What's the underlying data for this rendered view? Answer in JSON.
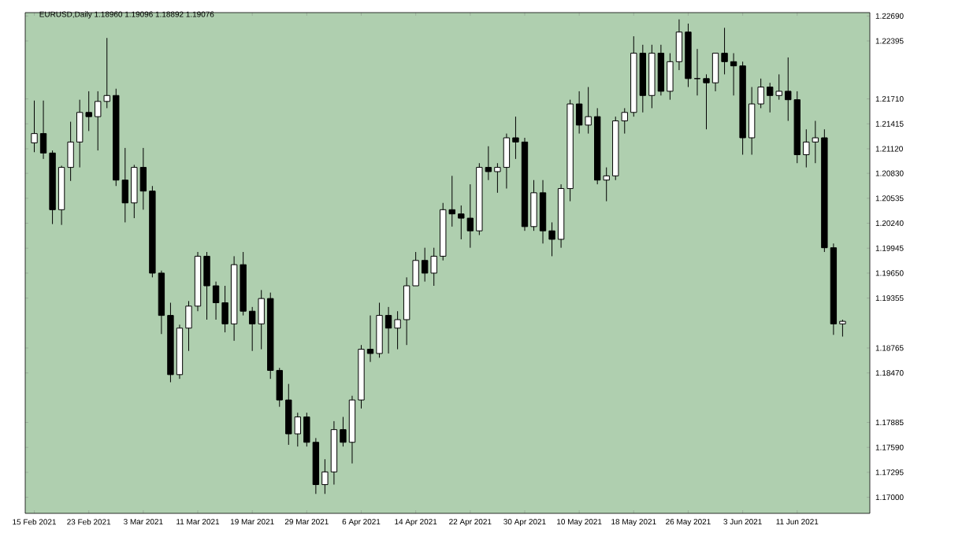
{
  "chart_data": {
    "type": "candlestick",
    "title": "EURUSD,Daily  1.18960 1.19096 1.18892 1.19076",
    "categories": [
      "15 Feb 2021",
      null,
      null,
      null,
      null,
      null,
      "23 Feb 2021",
      null,
      null,
      null,
      null,
      null,
      "3 Mar 2021",
      null,
      null,
      null,
      null,
      null,
      "11 Mar 2021",
      null,
      null,
      null,
      null,
      null,
      "19 Mar 2021",
      null,
      null,
      null,
      null,
      null,
      "29 Mar 2021",
      null,
      null,
      null,
      null,
      null,
      "6 Apr 2021",
      null,
      null,
      null,
      null,
      null,
      "14 Apr 2021",
      null,
      null,
      null,
      null,
      null,
      "22 Apr 2021",
      null,
      null,
      null,
      null,
      null,
      "30 Apr 2021",
      null,
      null,
      null,
      null,
      null,
      "10 May 2021",
      null,
      null,
      null,
      null,
      null,
      "18 May 2021",
      null,
      null,
      null,
      null,
      null,
      "26 May 2021",
      null,
      null,
      null,
      null,
      null,
      "3 Jun 2021",
      null,
      null,
      null,
      null,
      null,
      "11 Jun 2021",
      null,
      null,
      null,
      null,
      null
    ],
    "ohlc": [
      [
        1.2119,
        1.2169,
        1.2108,
        1.213
      ],
      [
        1.213,
        1.2169,
        1.21,
        1.2107
      ],
      [
        1.2107,
        1.211,
        1.2023,
        1.204
      ],
      [
        1.204,
        1.2092,
        1.2022,
        1.209
      ],
      [
        1.209,
        1.2144,
        1.2074,
        1.212
      ],
      [
        1.212,
        1.217,
        1.209,
        1.2155
      ],
      [
        1.2155,
        1.218,
        1.2133,
        1.215
      ],
      [
        1.215,
        1.218,
        1.211,
        1.2168
      ],
      [
        1.2168,
        1.2243,
        1.216,
        1.2175
      ],
      [
        1.2175,
        1.2183,
        1.2068,
        1.2075
      ],
      [
        1.2075,
        1.2113,
        1.2025,
        1.2048
      ],
      [
        1.2048,
        1.2093,
        1.203,
        1.209
      ],
      [
        1.209,
        1.2113,
        1.204,
        1.2062
      ],
      [
        1.2062,
        1.2068,
        1.196,
        1.1965
      ],
      [
        1.1965,
        1.1968,
        1.1893,
        1.1915
      ],
      [
        1.1915,
        1.193,
        1.1836,
        1.1845
      ],
      [
        1.1845,
        1.1904,
        1.184,
        1.19
      ],
      [
        1.19,
        1.1932,
        1.1873,
        1.1926
      ],
      [
        1.1926,
        1.199,
        1.192,
        1.1985
      ],
      [
        1.1985,
        1.199,
        1.191,
        1.195
      ],
      [
        1.195,
        1.1955,
        1.191,
        1.193
      ],
      [
        1.193,
        1.195,
        1.1895,
        1.1905
      ],
      [
        1.1905,
        1.1985,
        1.1885,
        1.1975
      ],
      [
        1.1975,
        1.199,
        1.1915,
        1.192
      ],
      [
        1.192,
        1.1925,
        1.1873,
        1.1905
      ],
      [
        1.1905,
        1.1945,
        1.1875,
        1.1935
      ],
      [
        1.1935,
        1.1942,
        1.184,
        1.185
      ],
      [
        1.185,
        1.1853,
        1.1807,
        1.1815
      ],
      [
        1.1815,
        1.1834,
        1.1762,
        1.1775
      ],
      [
        1.1775,
        1.18,
        1.176,
        1.1795
      ],
      [
        1.1795,
        1.18,
        1.176,
        1.1765
      ],
      [
        1.1765,
        1.177,
        1.1704,
        1.1715
      ],
      [
        1.1715,
        1.1745,
        1.1704,
        1.173
      ],
      [
        1.173,
        1.179,
        1.1715,
        1.178
      ],
      [
        1.178,
        1.1795,
        1.176,
        1.1765
      ],
      [
        1.1765,
        1.182,
        1.174,
        1.1815
      ],
      [
        1.1815,
        1.188,
        1.1805,
        1.1875
      ],
      [
        1.1875,
        1.1915,
        1.186,
        1.187
      ],
      [
        1.187,
        1.193,
        1.1865,
        1.1915
      ],
      [
        1.1915,
        1.1925,
        1.187,
        1.19
      ],
      [
        1.19,
        1.192,
        1.1875,
        1.191
      ],
      [
        1.191,
        1.196,
        1.188,
        1.195
      ],
      [
        1.195,
        1.199,
        1.195,
        1.198
      ],
      [
        1.198,
        1.1995,
        1.1955,
        1.1965
      ],
      [
        1.1965,
        1.1995,
        1.195,
        1.1985
      ],
      [
        1.1985,
        1.2048,
        1.198,
        1.204
      ],
      [
        1.204,
        1.208,
        1.202,
        1.2035
      ],
      [
        1.2035,
        1.2045,
        1.2005,
        1.203
      ],
      [
        1.203,
        1.207,
        1.1995,
        1.2015
      ],
      [
        1.2015,
        1.2095,
        1.201,
        1.209
      ],
      [
        1.209,
        1.2115,
        1.2075,
        1.2085
      ],
      [
        1.2085,
        1.2095,
        1.206,
        1.209
      ],
      [
        1.209,
        1.213,
        1.2065,
        1.2125
      ],
      [
        1.2125,
        1.215,
        1.21,
        1.212
      ],
      [
        1.212,
        1.2125,
        1.2015,
        1.202
      ],
      [
        1.202,
        1.2075,
        1.2015,
        1.206
      ],
      [
        1.206,
        1.2075,
        1.2,
        1.2015
      ],
      [
        1.2015,
        1.2025,
        1.1985,
        1.2005
      ],
      [
        1.2005,
        1.207,
        1.1995,
        1.2065
      ],
      [
        1.2065,
        1.217,
        1.205,
        1.2165
      ],
      [
        1.2165,
        1.218,
        1.213,
        1.214
      ],
      [
        1.214,
        1.2185,
        1.213,
        1.215
      ],
      [
        1.215,
        1.216,
        1.207,
        1.2075
      ],
      [
        1.2075,
        1.209,
        1.205,
        1.208
      ],
      [
        1.208,
        1.215,
        1.2075,
        1.2145
      ],
      [
        1.2145,
        1.216,
        1.213,
        1.2155
      ],
      [
        1.2155,
        1.2245,
        1.215,
        1.2225
      ],
      [
        1.2225,
        1.2235,
        1.2155,
        1.2175
      ],
      [
        1.2175,
        1.2235,
        1.216,
        1.2225
      ],
      [
        1.2225,
        1.2235,
        1.2175,
        1.218
      ],
      [
        1.218,
        1.2225,
        1.217,
        1.2215
      ],
      [
        1.2215,
        1.2265,
        1.2205,
        1.225
      ],
      [
        1.225,
        1.226,
        1.2185,
        1.2195
      ],
      [
        1.2195,
        1.223,
        1.2175,
        1.2195
      ],
      [
        1.2195,
        1.22,
        1.2135,
        1.219
      ],
      [
        1.219,
        1.2225,
        1.218,
        1.2225
      ],
      [
        1.2225,
        1.2255,
        1.22,
        1.2215
      ],
      [
        1.2215,
        1.2225,
        1.2175,
        1.221
      ],
      [
        1.221,
        1.2215,
        1.2105,
        1.2125
      ],
      [
        1.2125,
        1.2185,
        1.2105,
        1.2165
      ],
      [
        1.2165,
        1.2195,
        1.216,
        1.2185
      ],
      [
        1.2185,
        1.219,
        1.2155,
        1.2175
      ],
      [
        1.2175,
        1.22,
        1.217,
        1.218
      ],
      [
        1.218,
        1.222,
        1.2145,
        1.217
      ],
      [
        1.217,
        1.218,
        1.2095,
        1.2105
      ],
      [
        1.2105,
        1.2135,
        1.209,
        1.212
      ],
      [
        1.212,
        1.2145,
        1.2095,
        1.2125
      ],
      [
        1.2125,
        1.2135,
        1.199,
        1.1995
      ],
      [
        1.1995,
        1.2,
        1.1892,
        1.1905
      ],
      [
        1.1905,
        1.191,
        1.189,
        1.1908
      ]
    ],
    "ylim": [
      1.1681,
      1.2273
    ],
    "yticks": [
      {
        "value": 1.17,
        "label": "1.17000"
      },
      {
        "value": 1.17295,
        "label": "1.17295"
      },
      {
        "value": 1.1759,
        "label": "1.17590"
      },
      {
        "value": 1.17885,
        "label": "1.17885"
      },
      {
        "value": 1.1847,
        "label": "1.18470"
      },
      {
        "value": 1.18765,
        "label": "1.18765"
      },
      {
        "value": 1.19355,
        "label": "1.19355"
      },
      {
        "value": 1.1965,
        "label": "1.19650"
      },
      {
        "value": 1.19945,
        "label": "1.19945"
      },
      {
        "value": 1.2024,
        "label": "1.20240"
      },
      {
        "value": 1.20535,
        "label": "1.20535"
      },
      {
        "value": 1.2083,
        "label": "1.20830"
      },
      {
        "value": 1.2112,
        "label": "1.21120"
      },
      {
        "value": 1.21415,
        "label": "1.21415"
      },
      {
        "value": 1.2171,
        "label": "1.21710"
      },
      {
        "value": 1.22395,
        "label": "1.22395"
      },
      {
        "value": 1.2269,
        "label": "1.22690"
      }
    ]
  }
}
